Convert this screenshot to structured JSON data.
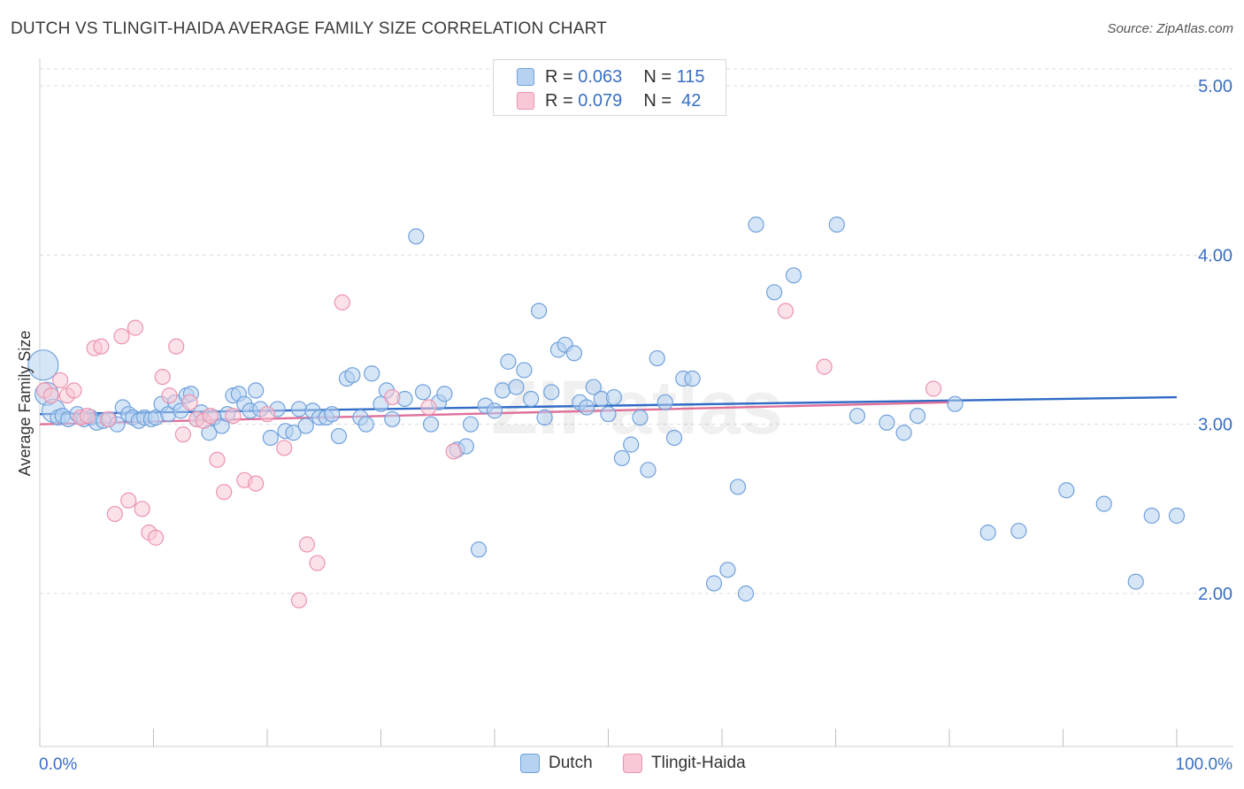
{
  "title": "DUTCH VS TLINGIT-HAIDA AVERAGE FAMILY SIZE CORRELATION CHART",
  "source": "Source: ZipAtlas.com",
  "watermark": "ZIPatlas",
  "legend": {
    "rows": [
      {
        "r_label": "R = ",
        "r_value": "0.063",
        "n_label": "N = ",
        "n_value": "115",
        "color": "#6fa1dc"
      },
      {
        "r_label": "R = ",
        "r_value": "0.079",
        "n_label": "N = ",
        "n_value": " 42",
        "color": "#ec94b0"
      }
    ]
  },
  "chart_data": {
    "type": "scatter",
    "title": "DUTCH VS TLINGIT-HAIDA AVERAGE FAMILY SIZE CORRELATION CHART",
    "xlabel": "",
    "ylabel": "Average Family Size",
    "x_tick_labels": [
      "0.0%",
      "100.0%"
    ],
    "y_ticks": [
      2.0,
      3.0,
      4.0,
      5.0
    ],
    "y_tick_labels": [
      "2.00",
      "3.00",
      "4.00",
      "5.00"
    ],
    "xlim": [
      0,
      100
    ],
    "ylim": [
      1.05,
      5.1
    ],
    "grid": true,
    "legend_position": "bottom-center",
    "series": [
      {
        "name": "Dutch",
        "color": "#6fa1dc",
        "fill": "#b6d2f1",
        "trend": {
          "x": [
            0,
            100
          ],
          "y": [
            3.06,
            3.16
          ]
        },
        "points": [
          [
            0.3,
            3.35
          ],
          [
            0.6,
            3.18
          ],
          [
            1.2,
            3.08
          ],
          [
            1.6,
            3.04
          ],
          [
            2.0,
            3.05
          ],
          [
            2.5,
            3.03
          ],
          [
            3.3,
            3.06
          ],
          [
            3.9,
            3.03
          ],
          [
            4.5,
            3.04
          ],
          [
            5.0,
            3.01
          ],
          [
            5.6,
            3.02
          ],
          [
            6.1,
            3.03
          ],
          [
            6.8,
            3.0
          ],
          [
            7.3,
            3.1
          ],
          [
            7.8,
            3.06
          ],
          [
            8.2,
            3.04
          ],
          [
            8.7,
            3.02
          ],
          [
            9.2,
            3.04
          ],
          [
            9.8,
            3.03
          ],
          [
            10.2,
            3.04
          ],
          [
            10.7,
            3.12
          ],
          [
            11.3,
            3.06
          ],
          [
            11.9,
            3.13
          ],
          [
            12.4,
            3.08
          ],
          [
            12.9,
            3.17
          ],
          [
            13.3,
            3.18
          ],
          [
            13.8,
            3.03
          ],
          [
            14.2,
            3.07
          ],
          [
            14.9,
            2.95
          ],
          [
            15.3,
            3.04
          ],
          [
            16.0,
            2.99
          ],
          [
            16.5,
            3.06
          ],
          [
            17.0,
            3.17
          ],
          [
            17.5,
            3.18
          ],
          [
            18.0,
            3.12
          ],
          [
            18.5,
            3.08
          ],
          [
            19.0,
            3.2
          ],
          [
            19.4,
            3.09
          ],
          [
            20.3,
            2.92
          ],
          [
            20.9,
            3.09
          ],
          [
            21.6,
            2.96
          ],
          [
            22.3,
            2.95
          ],
          [
            22.8,
            3.09
          ],
          [
            23.4,
            2.99
          ],
          [
            24.0,
            3.08
          ],
          [
            24.6,
            3.04
          ],
          [
            25.2,
            3.04
          ],
          [
            25.7,
            3.06
          ],
          [
            26.3,
            2.93
          ],
          [
            27.0,
            3.27
          ],
          [
            27.5,
            3.29
          ],
          [
            28.2,
            3.04
          ],
          [
            28.7,
            3.0
          ],
          [
            29.2,
            3.3
          ],
          [
            30.0,
            3.12
          ],
          [
            30.5,
            3.2
          ],
          [
            31.0,
            3.03
          ],
          [
            32.1,
            3.15
          ],
          [
            33.1,
            4.11
          ],
          [
            33.7,
            3.19
          ],
          [
            34.4,
            3.0
          ],
          [
            35.1,
            3.13
          ],
          [
            35.6,
            3.18
          ],
          [
            36.7,
            2.85
          ],
          [
            37.5,
            2.87
          ],
          [
            37.9,
            3.0
          ],
          [
            38.6,
            2.26
          ],
          [
            39.2,
            3.11
          ],
          [
            40.0,
            3.08
          ],
          [
            40.7,
            3.2
          ],
          [
            41.2,
            3.37
          ],
          [
            41.9,
            3.22
          ],
          [
            42.6,
            3.32
          ],
          [
            43.2,
            3.15
          ],
          [
            43.9,
            3.67
          ],
          [
            44.4,
            3.04
          ],
          [
            45.0,
            3.19
          ],
          [
            45.6,
            3.44
          ],
          [
            46.2,
            3.47
          ],
          [
            47.0,
            3.42
          ],
          [
            47.5,
            3.13
          ],
          [
            48.1,
            3.1
          ],
          [
            48.7,
            3.22
          ],
          [
            49.4,
            3.15
          ],
          [
            50.0,
            3.06
          ],
          [
            50.5,
            3.16
          ],
          [
            51.2,
            2.8
          ],
          [
            52.0,
            2.88
          ],
          [
            52.8,
            3.04
          ],
          [
            53.5,
            2.73
          ],
          [
            54.3,
            3.39
          ],
          [
            55.0,
            3.13
          ],
          [
            55.8,
            2.92
          ],
          [
            56.6,
            3.27
          ],
          [
            57.4,
            3.27
          ],
          [
            59.3,
            2.06
          ],
          [
            60.5,
            2.14
          ],
          [
            61.4,
            2.63
          ],
          [
            62.1,
            2.0
          ],
          [
            63.0,
            4.18
          ],
          [
            64.6,
            3.78
          ],
          [
            66.3,
            3.88
          ],
          [
            70.1,
            4.18
          ],
          [
            71.9,
            3.05
          ],
          [
            74.5,
            3.01
          ],
          [
            76.0,
            2.95
          ],
          [
            77.2,
            3.05
          ],
          [
            80.5,
            3.12
          ],
          [
            83.4,
            2.36
          ],
          [
            86.1,
            2.37
          ],
          [
            90.3,
            2.61
          ],
          [
            93.6,
            2.53
          ],
          [
            96.4,
            2.07
          ],
          [
            97.8,
            2.46
          ],
          [
            100.0,
            2.46
          ]
        ]
      },
      {
        "name": "Tlingit-Haida",
        "color": "#ec94b0",
        "fill": "#f8c8d6",
        "trend": {
          "x": [
            0,
            80
          ],
          "y": [
            3.0,
            3.13
          ]
        },
        "points": [
          [
            0.4,
            3.2
          ],
          [
            1.0,
            3.17
          ],
          [
            1.8,
            3.26
          ],
          [
            2.4,
            3.17
          ],
          [
            3.0,
            3.2
          ],
          [
            3.6,
            3.04
          ],
          [
            4.2,
            3.05
          ],
          [
            4.8,
            3.45
          ],
          [
            5.4,
            3.46
          ],
          [
            6.0,
            3.03
          ],
          [
            6.6,
            2.47
          ],
          [
            7.2,
            3.52
          ],
          [
            7.8,
            2.55
          ],
          [
            8.4,
            3.57
          ],
          [
            9.0,
            2.5
          ],
          [
            9.6,
            2.36
          ],
          [
            10.2,
            2.33
          ],
          [
            10.8,
            3.28
          ],
          [
            11.4,
            3.17
          ],
          [
            12.0,
            3.46
          ],
          [
            12.6,
            2.94
          ],
          [
            13.2,
            3.13
          ],
          [
            13.8,
            3.03
          ],
          [
            14.4,
            3.02
          ],
          [
            15.0,
            3.05
          ],
          [
            15.6,
            2.79
          ],
          [
            16.2,
            2.6
          ],
          [
            17.0,
            3.05
          ],
          [
            18.0,
            2.67
          ],
          [
            19.0,
            2.65
          ],
          [
            20.0,
            3.06
          ],
          [
            21.5,
            2.86
          ],
          [
            22.8,
            1.96
          ],
          [
            23.5,
            2.29
          ],
          [
            24.4,
            2.18
          ],
          [
            26.6,
            3.72
          ],
          [
            31.0,
            3.16
          ],
          [
            34.2,
            3.1
          ],
          [
            36.4,
            2.84
          ],
          [
            65.6,
            3.67
          ],
          [
            69.0,
            3.34
          ],
          [
            78.6,
            3.21
          ]
        ]
      }
    ]
  }
}
